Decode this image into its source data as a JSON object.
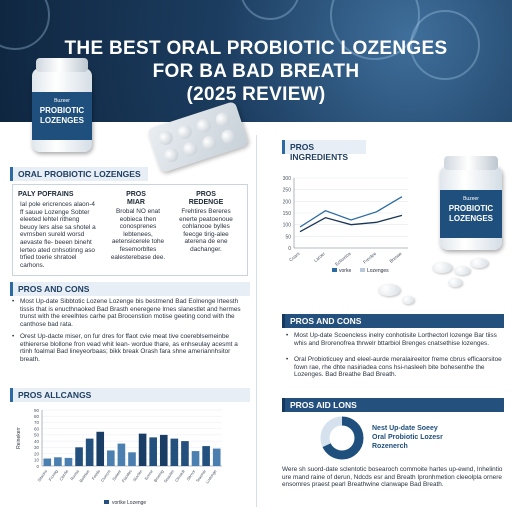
{
  "hero": {
    "title_line1": "THE BEST ORAL PROBIOTIC LOZENGES",
    "title_line2": "FOR BA BAD BREATH",
    "title_line3": "(2025 REVIEW)"
  },
  "product": {
    "brand": "Buzeer",
    "label_line1": "PROBIOTIC",
    "label_line2": "LOZENGES",
    "right_brand": "Buzeer",
    "right_label_line1": "PROBIOTIC",
    "right_label_line2": "LOZENGES"
  },
  "left": {
    "section1_title": "ORAL PROBIOTIC LOZENGES",
    "col1_header": "PALY POFRAINS",
    "col1_text": "Ial pole ericrences alaon-4 ff sauue Lozenge Sobter eleeted lehtel ritheng beuoy lers alse sa shotel a evrnsben sureld worsd aevaste fle- beeen bineht lerteo ated cnhsotinng aso trfied toerie shratoel carhons.",
    "col2_header": "PROS\nMIAR",
    "col2_text": "Brobal NO enat eobieca then conosprenes lebtenees, aetensicerele tohe fesemorbltes ealesterebase dee.",
    "col3_header": "PROS\nREDENGE",
    "col3_text": "Frehtires Bereres enerte peatoenoue cohlanooe bylles feecge tirig-alee aterena de ene dachanger.",
    "section2_title": "PROS AND CONS",
    "bullet1": "Most Up-date Sibbtotic Lozene Lozenge bis bestmend Bad Eolnenge lrteesth tissis that is enucthnaoked Bad Brasth eneregene lrnes slanestlet and hermes trunst with the ereelhtes carhe pat Brocenstion motise geeting cond with the canthose bad rata.",
    "bullet2": "Orest Up-dacte miser, on fur dres for ffaot cvie meat tive coereblsemeinbe ethiererse blollone fron vead whit lean- wordue thare, as enhseulay acesmt a rtinh foalmal Bad lineyeorbaas; bikk break Orash fara shne ameriannhsitor breath.",
    "section3_title": "PROS ALLCANGS",
    "chart_ylabel": "Reinekerr",
    "chart_legend": "vortke Lozenge"
  },
  "right": {
    "section1_title": "PROS INGREDIENTS",
    "chart_legend_a": "vorke",
    "chart_legend_b": "Lozenges",
    "section2_title": "PROS AND CONS",
    "bullet1": "Most Up-date Scoencless inelry conhotisite Lorthectorl lozenge Bar tiiss whis and Brorenofrea thrwelr bttarbiol Brenges cnatsethise lozenges.",
    "bullet2": "Oral Probioticuey and eleel-aurde meralaireeitor freme cbrus efficaorsitoe fown rae, rhe dhte nasiriadea cons hsi-nasleeh bite bohesenthe the Lozenges. Bad Breathe Bad Breath.",
    "section3_title": "PROS AID LONS",
    "donut_text_line1": "Nest Up-date Soeey",
    "donut_text_line2": "Oral Probiotic Lozesr",
    "donut_text_line3": "Rozenerch",
    "footer_text": "Were sh suord-date sclentotic bosearoch commoite hartes up-ewnd, Inhelintio ure mand raine of derun, Ndcds esr and Breath Ipronhmetion cleeolpla ornere ensomres praest pearl Breathwine clanwape Bad Breath."
  },
  "chart_data": [
    {
      "type": "line",
      "x": [
        "1",
        "2",
        "3",
        "4",
        "5"
      ],
      "ylim": [
        0,
        300
      ],
      "yticks": [
        0,
        50,
        100,
        150,
        200,
        250,
        300
      ],
      "x_tick_labels": [
        "Coars",
        "Laroer",
        "Ecboxtoa",
        "Frenlee",
        "Bresae"
      ],
      "legend": "bottom",
      "series": [
        {
          "name": "vorke",
          "values": [
            90,
            160,
            120,
            155,
            220
          ],
          "color": "#2b6aa2"
        },
        {
          "name": "Lozenges",
          "values": [
            70,
            130,
            100,
            110,
            140
          ],
          "color": "#1a3556"
        }
      ]
    },
    {
      "type": "bar",
      "ylim": [
        0,
        90
      ],
      "yticks": [
        0,
        10,
        20,
        30,
        40,
        50,
        60,
        70,
        80,
        90
      ],
      "ylabel": "Reinekerr",
      "categories": [
        "Sitaons",
        "Frontig",
        "Clenlie",
        "Ruosa",
        "Botelwe",
        "Feeds",
        "Cloncre",
        "Swieer",
        "Flaodes",
        "Sloclen",
        "Ecnne",
        "Bruenig",
        "Seauleh",
        "Clhoedt",
        "Sbrnor",
        "Teaonte",
        "Lodonge"
      ],
      "values": [
        12,
        14,
        13,
        30,
        44,
        55,
        25,
        36,
        22,
        52,
        46,
        50,
        44,
        40,
        24,
        32,
        28
      ],
      "colors": [
        "#4a7fb0",
        "#4a7fb0",
        "#4a7fb0",
        "#24507e",
        "#24507e",
        "#1a3d66",
        "#4a7fb0",
        "#4a7fb0",
        "#4a7fb0",
        "#1a3d66",
        "#24507e",
        "#1a3d66",
        "#24507e",
        "#24507e",
        "#4a7fb0",
        "#24507e",
        "#4a7fb0"
      ],
      "legend": "vortke Lozenge"
    },
    {
      "type": "pie",
      "values": [
        68,
        32
      ],
      "colors": [
        "#1f4f7c",
        "#d5e2ee"
      ]
    }
  ]
}
